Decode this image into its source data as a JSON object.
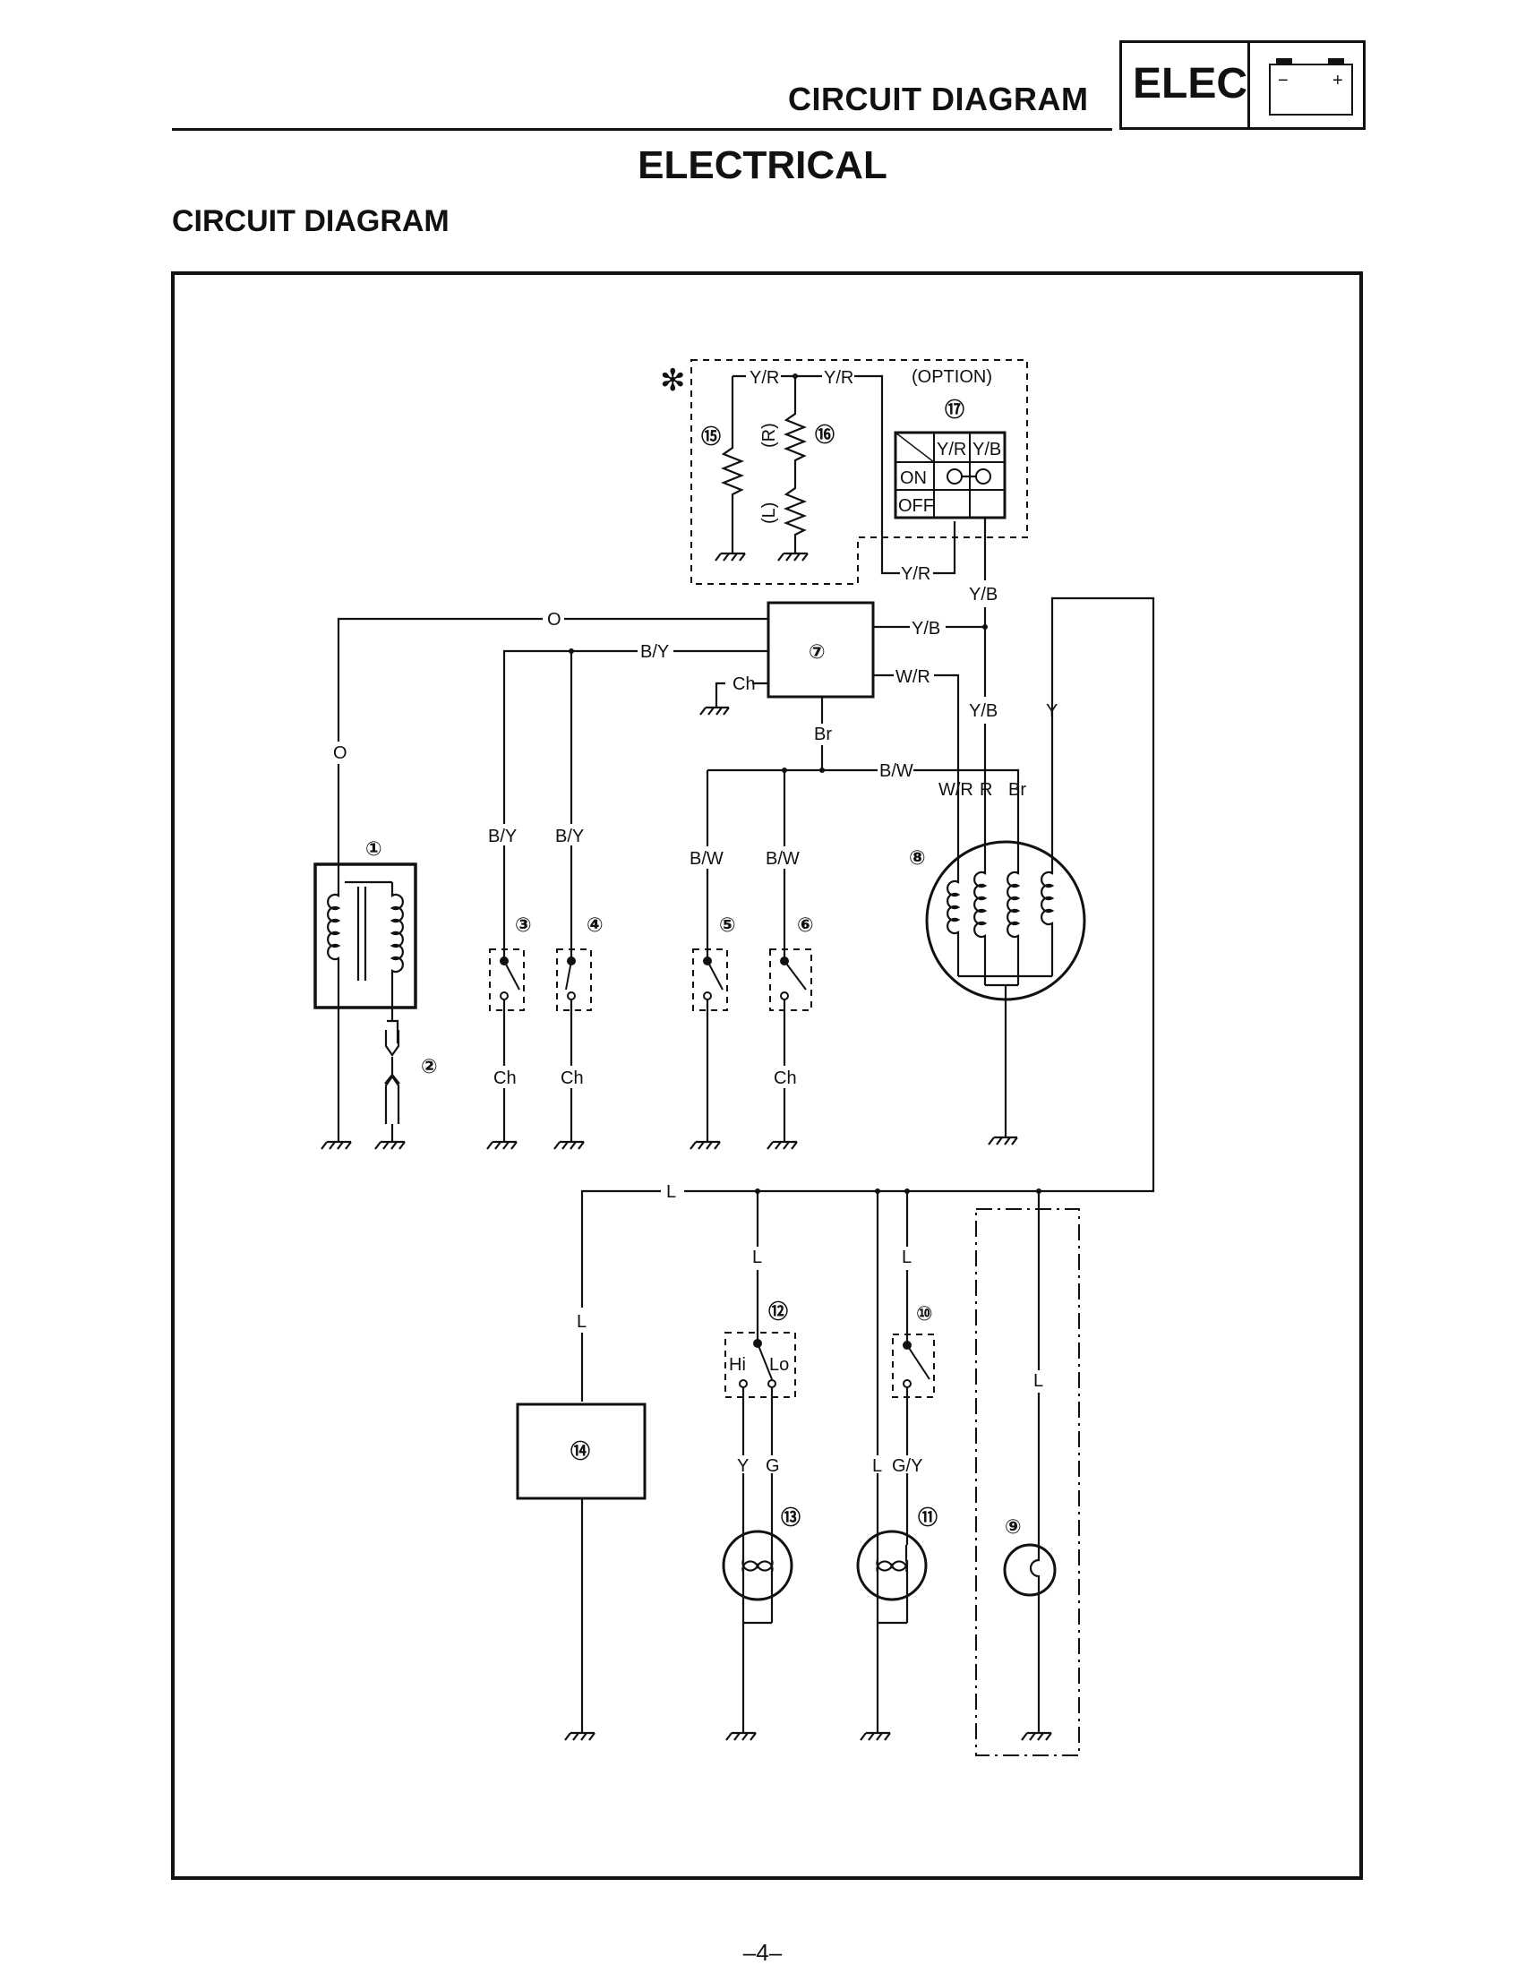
{
  "header": {
    "section_title": "CIRCUIT DIAGRAM",
    "badge_text": "ELEC",
    "battery_minus": "−",
    "battery_plus": "+"
  },
  "page": {
    "title": "ELECTRICAL",
    "subtitle": "CIRCUIT DIAGRAM",
    "page_number": "–4–"
  },
  "diagram": {
    "asterisk": "✻",
    "option_label": "(OPTION)",
    "switch_table": {
      "headers": [
        "Y/R",
        "Y/B"
      ],
      "rows": [
        "ON",
        "OFF"
      ]
    },
    "component_numbers": [
      "①",
      "②",
      "③",
      "④",
      "⑤",
      "⑥",
      "⑦",
      "⑧",
      "⑨",
      "⑩",
      "⑪",
      "⑫",
      "⑬",
      "⑭",
      "⑮",
      "⑯",
      "⑰"
    ],
    "resistor_side_labels": [
      "(R)",
      "(L)"
    ],
    "switch_labels": [
      "Hi",
      "Lo"
    ],
    "wire_labels": {
      "orange": "O",
      "black_yellow": "B/Y",
      "black_white": "B/W",
      "brown": "Br",
      "chassis": "Ch",
      "yellow_red": "Y/R",
      "yellow_black": "Y/B",
      "white_red": "W/R",
      "red": "R",
      "yellow": "Y",
      "blue": "L",
      "green": "G",
      "green_yellow": "G/Y"
    }
  }
}
